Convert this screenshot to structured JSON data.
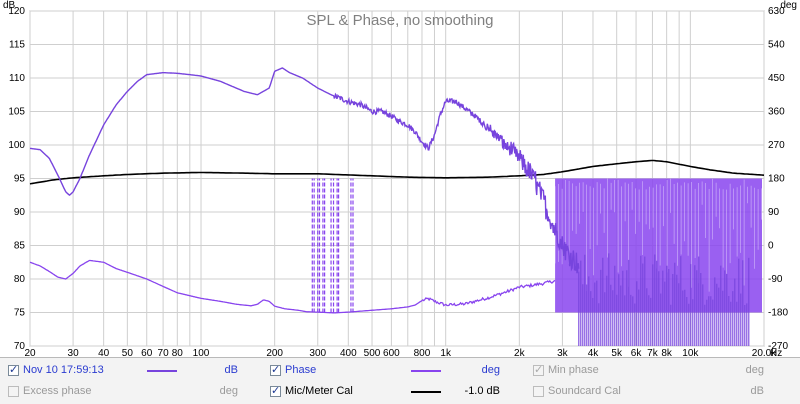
{
  "chart_data": {
    "type": "line",
    "title": "SPL & Phase, no smoothing",
    "x_axis": {
      "scale": "log",
      "range": [
        20,
        20000
      ],
      "unit": "Hz",
      "tick_values": [
        20,
        30,
        40,
        50,
        60,
        70,
        80,
        100,
        200,
        300,
        400,
        500,
        600,
        800,
        1000,
        2000,
        3000,
        4000,
        5000,
        6000,
        7000,
        8000,
        10000,
        20000
      ],
      "tick_labels": [
        "20",
        "30",
        "40",
        "50",
        "60",
        "70",
        "80",
        "100",
        "200",
        "300",
        "400",
        "500",
        "600",
        "800",
        "1k",
        "2k",
        "3k",
        "4k",
        "5k",
        "6k",
        "7k",
        "8k",
        "10k",
        "20.0k"
      ]
    },
    "y_left": {
      "unit": "dB",
      "range": [
        70,
        120
      ],
      "ticks": [
        70,
        75,
        80,
        85,
        90,
        95,
        100,
        105,
        110,
        115,
        120
      ]
    },
    "y_right": {
      "unit": "deg",
      "range": [
        -270,
        630
      ],
      "ticks": [
        -270,
        -180,
        -90,
        0,
        90,
        180,
        270,
        360,
        450,
        540,
        630
      ]
    },
    "grid": true,
    "legend_position": "bottom",
    "series": [
      {
        "name": "Nov 10 17:59:13",
        "axis": "left",
        "color": "#7744dd",
        "points": [
          [
            20,
            99.5
          ],
          [
            22,
            99.3
          ],
          [
            24,
            98.0
          ],
          [
            26,
            95.5
          ],
          [
            28,
            93.0
          ],
          [
            29,
            92.5
          ],
          [
            30,
            93.0
          ],
          [
            32,
            95.0
          ],
          [
            35,
            98.5
          ],
          [
            40,
            103.0
          ],
          [
            45,
            106.0
          ],
          [
            50,
            108.0
          ],
          [
            55,
            109.5
          ],
          [
            60,
            110.5
          ],
          [
            70,
            110.8
          ],
          [
            80,
            110.7
          ],
          [
            90,
            110.5
          ],
          [
            100,
            110.3
          ],
          [
            120,
            109.5
          ],
          [
            150,
            108.0
          ],
          [
            170,
            107.5
          ],
          [
            190,
            108.5
          ],
          [
            200,
            111.0
          ],
          [
            215,
            111.5
          ],
          [
            230,
            110.8
          ],
          [
            260,
            110.0
          ],
          [
            300,
            108.5
          ],
          [
            340,
            107.5
          ],
          [
            400,
            106.5
          ],
          [
            450,
            106.0
          ],
          [
            500,
            105.0
          ],
          [
            550,
            105.0
          ],
          [
            600,
            104.3
          ],
          [
            650,
            103.5
          ],
          [
            700,
            103.0
          ],
          [
            750,
            102.0
          ],
          [
            800,
            100.5
          ],
          [
            850,
            99.5
          ],
          [
            900,
            101.5
          ],
          [
            950,
            104.5
          ],
          [
            1000,
            106.5
          ],
          [
            1100,
            106.5
          ],
          [
            1300,
            104.5
          ],
          [
            1500,
            102.5
          ],
          [
            1700,
            100.5
          ],
          [
            2000,
            98.0
          ],
          [
            2300,
            95.0
          ],
          [
            2500,
            92.0
          ],
          [
            2700,
            88.5
          ],
          [
            3000,
            85.0
          ],
          [
            3500,
            82.0
          ]
        ],
        "noise_from_hz": 1400,
        "noise_db": 1.5
      },
      {
        "name": "Phase",
        "axis": "right",
        "color": "#8844ee",
        "points": [
          [
            20,
            -45
          ],
          [
            22,
            -55
          ],
          [
            24,
            -70
          ],
          [
            26,
            -85
          ],
          [
            28,
            -90
          ],
          [
            30,
            -75
          ],
          [
            32,
            -55
          ],
          [
            35,
            -40
          ],
          [
            40,
            -45
          ],
          [
            45,
            -62
          ],
          [
            50,
            -72
          ],
          [
            60,
            -90
          ],
          [
            70,
            -110
          ],
          [
            80,
            -127
          ],
          [
            100,
            -142
          ],
          [
            120,
            -150
          ],
          [
            140,
            -158
          ],
          [
            160,
            -162
          ],
          [
            170,
            -158
          ],
          [
            180,
            -146
          ],
          [
            190,
            -150
          ],
          [
            200,
            -163
          ],
          [
            220,
            -170
          ],
          [
            250,
            -174
          ],
          [
            270,
            -178
          ],
          [
            300,
            -179
          ],
          [
            350,
            -181
          ],
          [
            400,
            -179
          ],
          [
            500,
            -174
          ],
          [
            600,
            -170
          ],
          [
            700,
            -165
          ],
          [
            750,
            -160
          ],
          [
            800,
            -148
          ],
          [
            850,
            -143
          ],
          [
            900,
            -150
          ],
          [
            1000,
            -160
          ],
          [
            1200,
            -157
          ],
          [
            1500,
            -140
          ],
          [
            1800,
            -123
          ],
          [
            2000,
            -112
          ],
          [
            2200,
            -108
          ],
          [
            2500,
            -102
          ],
          [
            2800,
            -95
          ]
        ],
        "wrap_bands_hz": [
          [
            285,
            290
          ],
          [
            300,
            305
          ],
          [
            315,
            320
          ],
          [
            340,
            348
          ],
          [
            360,
            365
          ],
          [
            410,
            418
          ]
        ],
        "wrapping_from_hz": 2800,
        "wrap_range_deg": [
          -180,
          180
        ]
      },
      {
        "name": "Mic/Meter Cal",
        "axis": "left",
        "color": "#000000",
        "offset_label": "-1.0 dB",
        "points": [
          [
            20,
            94.2
          ],
          [
            25,
            94.8
          ],
          [
            30,
            95.1
          ],
          [
            40,
            95.4
          ],
          [
            50,
            95.6
          ],
          [
            70,
            95.8
          ],
          [
            100,
            95.9
          ],
          [
            150,
            95.8
          ],
          [
            200,
            95.7
          ],
          [
            300,
            95.7
          ],
          [
            500,
            95.4
          ],
          [
            700,
            95.2
          ],
          [
            1000,
            95.1
          ],
          [
            1500,
            95.2
          ],
          [
            2000,
            95.4
          ],
          [
            2500,
            95.6
          ],
          [
            3000,
            96.0
          ],
          [
            4000,
            96.8
          ],
          [
            5000,
            97.2
          ],
          [
            6000,
            97.5
          ],
          [
            7000,
            97.7
          ],
          [
            8000,
            97.5
          ],
          [
            10000,
            96.8
          ],
          [
            12000,
            96.3
          ],
          [
            15000,
            95.8
          ],
          [
            20000,
            95.5
          ]
        ]
      }
    ]
  },
  "legend": {
    "items": [
      {
        "label": "Nov 10 17:59:13",
        "unit": "dB",
        "checked": true,
        "enabled": true,
        "swatch": "#7744dd"
      },
      {
        "label": "Phase",
        "unit": "deg",
        "checked": true,
        "enabled": true,
        "swatch": "#8844ee"
      },
      {
        "label": "Min phase",
        "unit": "deg",
        "checked": true,
        "enabled": false,
        "swatch": ""
      },
      {
        "label": "Excess phase",
        "unit": "deg",
        "checked": false,
        "enabled": false,
        "swatch": ""
      },
      {
        "label": "Mic/Meter Cal",
        "unit": "-1.0 dB",
        "checked": true,
        "enabled": true,
        "swatch": "#000000"
      },
      {
        "label": "Soundcard Cal",
        "unit": "dB",
        "checked": false,
        "enabled": false,
        "swatch": ""
      }
    ]
  }
}
